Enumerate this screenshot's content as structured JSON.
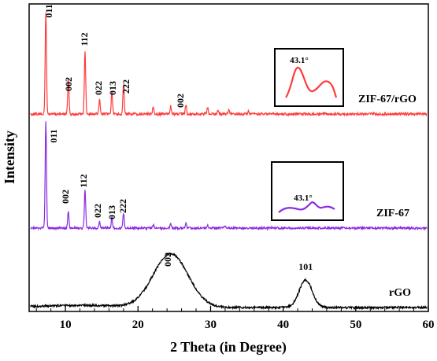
{
  "chart_data": {
    "type": "line",
    "xlabel": "2 Theta (in Degree)",
    "ylabel": "Intensity",
    "xlim": [
      5,
      60
    ],
    "xticks": [
      "10",
      "20",
      "30",
      "40",
      "50",
      "60"
    ],
    "grid": false,
    "series": [
      {
        "name": "ZIF-67/rGO",
        "color": "#ff3b3b",
        "peaks": [
          {
            "x": 7.3,
            "label": "011",
            "height": 1.0
          },
          {
            "x": 10.4,
            "label": "002",
            "height": 0.34
          },
          {
            "x": 12.7,
            "label": "112",
            "height": 0.62
          },
          {
            "x": 14.7,
            "label": "022",
            "height": 0.14
          },
          {
            "x": 16.4,
            "label": "013",
            "height": 0.22
          },
          {
            "x": 18.0,
            "label": "222",
            "height": 0.3
          },
          {
            "x": 22.1,
            "label": "",
            "height": 0.08
          },
          {
            "x": 24.5,
            "label": "",
            "height": 0.08
          },
          {
            "x": 26.6,
            "label": "002",
            "height": 0.09
          },
          {
            "x": 29.6,
            "label": "",
            "height": 0.06
          },
          {
            "x": 31.0,
            "label": "",
            "height": 0.04
          },
          {
            "x": 32.5,
            "label": "",
            "height": 0.04
          },
          {
            "x": 35.2,
            "label": "",
            "height": 0.03
          }
        ],
        "inset_label": "43.1°"
      },
      {
        "name": "ZIF-67",
        "color": "#8a2be2",
        "peaks": [
          {
            "x": 7.3,
            "label": "011",
            "height": 1.0
          },
          {
            "x": 10.4,
            "label": "002",
            "height": 0.16
          },
          {
            "x": 12.7,
            "label": "112",
            "height": 0.37
          },
          {
            "x": 14.7,
            "label": "022",
            "height": 0.06
          },
          {
            "x": 16.4,
            "label": "013",
            "height": 0.1
          },
          {
            "x": 18.0,
            "label": "222",
            "height": 0.14
          },
          {
            "x": 22.1,
            "label": "",
            "height": 0.03
          },
          {
            "x": 24.5,
            "label": "",
            "height": 0.04
          },
          {
            "x": 26.6,
            "label": "",
            "height": 0.05
          },
          {
            "x": 29.6,
            "label": "",
            "height": 0.03
          },
          {
            "x": 32.0,
            "label": "",
            "height": 0.02
          }
        ],
        "inset_label": "43.1°"
      },
      {
        "name": "rGO",
        "color": "#000000",
        "peaks": [
          {
            "x": 24.5,
            "label": "002",
            "height": 1.0
          },
          {
            "x": 43.1,
            "label": "101",
            "height": 0.51
          }
        ]
      }
    ]
  }
}
